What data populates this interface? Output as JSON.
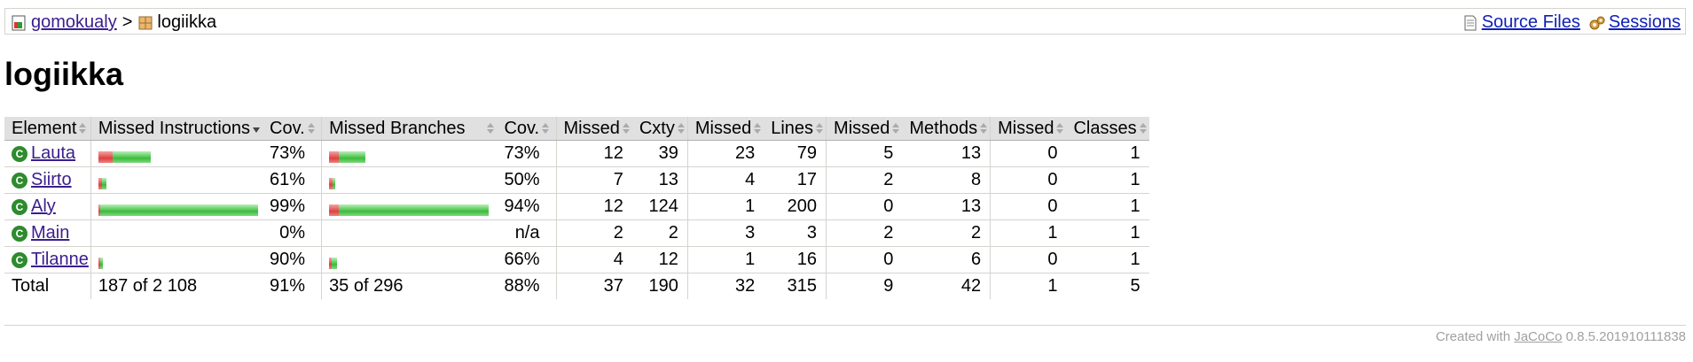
{
  "breadcrumb": {
    "session": "gomokualy",
    "separator": ">",
    "package": "logiikka",
    "source_files": "Source Files",
    "sessions": "Sessions"
  },
  "page_title": "logiikka",
  "headers": {
    "element": "Element",
    "missed_instructions": "Missed Instructions",
    "cov1": "Cov.",
    "missed_branches": "Missed Branches",
    "cov2": "Cov.",
    "missed_cxty": "Missed",
    "cxty": "Cxty",
    "missed_lines": "Missed",
    "lines": "Lines",
    "missed_methods": "Missed",
    "methods": "Methods",
    "missed_classes": "Missed",
    "classes": "Classes"
  },
  "rows": [
    {
      "name": "Lauta",
      "instr_missed_frac": 0.27,
      "instr_width": 0.33,
      "instr_cov": "73%",
      "br_missed_frac": 0.27,
      "br_width": 0.23,
      "br_cov": "73%",
      "missed_cxty": "12",
      "cxty": "39",
      "missed_lines": "23",
      "lines": "79",
      "missed_methods": "5",
      "methods": "13",
      "missed_classes": "0",
      "classes": "1"
    },
    {
      "name": "Siirto",
      "instr_missed_frac": 0.39,
      "instr_width": 0.05,
      "instr_cov": "61%",
      "br_missed_frac": 0.5,
      "br_width": 0.04,
      "br_cov": "50%",
      "missed_cxty": "7",
      "cxty": "13",
      "missed_lines": "4",
      "lines": "17",
      "missed_methods": "2",
      "methods": "8",
      "missed_classes": "0",
      "classes": "1"
    },
    {
      "name": "Aly",
      "instr_missed_frac": 0.01,
      "instr_width": 1.0,
      "instr_cov": "99%",
      "br_missed_frac": 0.06,
      "br_width": 1.0,
      "br_cov": "94%",
      "missed_cxty": "12",
      "cxty": "124",
      "missed_lines": "1",
      "lines": "200",
      "missed_methods": "0",
      "methods": "13",
      "missed_classes": "0",
      "classes": "1"
    },
    {
      "name": "Main",
      "instr_missed_frac": 1.0,
      "instr_width": 0.0,
      "instr_cov": "0%",
      "br_missed_frac": 0,
      "br_width": 0,
      "br_cov": "n/a",
      "missed_cxty": "2",
      "cxty": "2",
      "missed_lines": "3",
      "lines": "3",
      "missed_methods": "2",
      "methods": "2",
      "missed_classes": "1",
      "classes": "1"
    },
    {
      "name": "Tilanne",
      "instr_missed_frac": 0.1,
      "instr_width": 0.03,
      "instr_cov": "90%",
      "br_missed_frac": 0.34,
      "br_width": 0.05,
      "br_cov": "66%",
      "missed_cxty": "4",
      "cxty": "12",
      "missed_lines": "1",
      "lines": "16",
      "missed_methods": "0",
      "methods": "6",
      "missed_classes": "0",
      "classes": "1"
    }
  ],
  "total": {
    "label": "Total",
    "instructions": "187 of 2 108",
    "instr_cov": "91%",
    "branches": "35 of 296",
    "br_cov": "88%",
    "missed_cxty": "37",
    "cxty": "190",
    "missed_lines": "32",
    "lines": "315",
    "missed_methods": "9",
    "methods": "42",
    "missed_classes": "1",
    "classes": "5"
  },
  "footer": {
    "prefix": "Created with ",
    "tool": "JaCoCo",
    "version": " 0.8.5.201910111838"
  },
  "colors": {
    "missed": "#e04040",
    "covered": "#3cbc3c",
    "header_bg": "#e0e0e0"
  }
}
